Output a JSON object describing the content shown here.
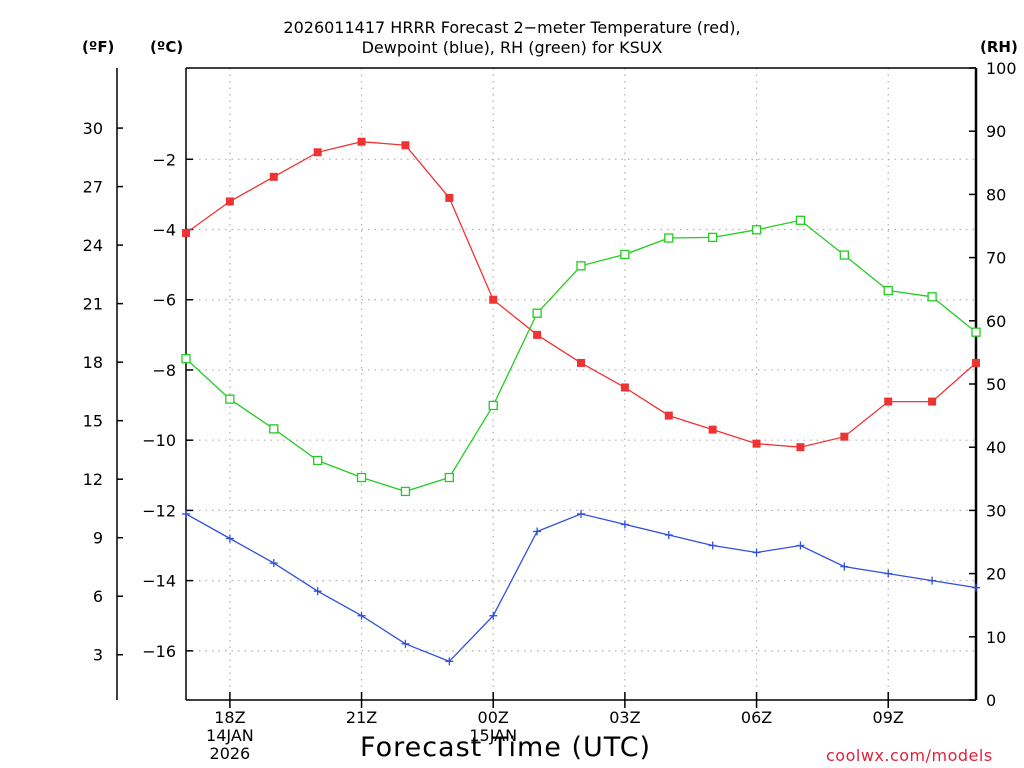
{
  "title_line1": "2026011417 HRRR Forecast 2−meter Temperature (red),",
  "title_line2": "Dewpoint (blue), RH (green) for KSUX",
  "unit_f": "(ºF)",
  "unit_c": "(ºC)",
  "unit_rh": "(RH)",
  "xtitle": "Forecast Time (UTC)",
  "credit": "coolwx.com/models",
  "colors": {
    "temp": "#ee3333",
    "dew": "#2f4fe0",
    "rh": "#22cc22",
    "grid": "#b0b0b0"
  },
  "chart_data": {
    "type": "line",
    "title": "2026011417 HRRR Forecast 2-meter Temperature (red), Dewpoint (blue), RH (green) for KSUX",
    "xlabel": "Forecast Time (UTC)",
    "ylabel_left_outer": "(ºF)",
    "ylabel_left_inner": "(ºC)",
    "ylabel_right": "(RH)",
    "x_hours": [
      17,
      18,
      19,
      20,
      21,
      22,
      23,
      24,
      25,
      26,
      27,
      28,
      29,
      30,
      31,
      32,
      33,
      34,
      35
    ],
    "xlim": [
      17,
      35
    ],
    "x_ticks": [
      {
        "hour": 18,
        "lines": [
          "18Z",
          "14JAN",
          "2026"
        ]
      },
      {
        "hour": 21,
        "lines": [
          "21Z"
        ]
      },
      {
        "hour": 24,
        "lines": [
          "00Z",
          "15JAN"
        ]
      },
      {
        "hour": 27,
        "lines": [
          "03Z"
        ]
      },
      {
        "hour": 30,
        "lines": [
          "06Z"
        ]
      },
      {
        "hour": 33,
        "lines": [
          "09Z"
        ]
      }
    ],
    "celsius_lim": [
      -17.4,
      0.6
    ],
    "celsius_ticks": [
      -2,
      -4,
      -6,
      -8,
      -10,
      -12,
      -14,
      -16
    ],
    "fahrenheit_ticks": [
      30,
      27,
      24,
      21,
      18,
      15,
      12,
      9,
      6,
      3
    ],
    "rh_lim": [
      0,
      100
    ],
    "rh_ticks": [
      0,
      10,
      20,
      30,
      40,
      50,
      60,
      70,
      80,
      90,
      100
    ],
    "series": [
      {
        "name": "Temperature",
        "axis": "celsius",
        "marker": "filled-square",
        "color": "#ee3333",
        "values": [
          -4.1,
          -3.2,
          -2.5,
          -1.8,
          -1.5,
          -1.6,
          -3.1,
          -6.0,
          -7.0,
          -7.8,
          -8.5,
          -9.3,
          -9.7,
          -10.1,
          -10.2,
          -9.9,
          -8.9,
          -8.9,
          -7.8
        ]
      },
      {
        "name": "Dewpoint",
        "axis": "celsius",
        "marker": "plus",
        "color": "#2f4fe0",
        "values": [
          -12.1,
          -12.8,
          -13.5,
          -14.3,
          -15.0,
          -15.8,
          -16.3,
          -15.0,
          -12.6,
          -12.1,
          -12.4,
          -12.7,
          -13.0,
          -13.2,
          -13.0,
          -13.6,
          -13.8,
          -14.0,
          -14.2
        ]
      },
      {
        "name": "RH",
        "axis": "rh",
        "marker": "open-square",
        "color": "#22cc22",
        "values": [
          54,
          47.6,
          42.9,
          37.9,
          35.2,
          33,
          35.2,
          46.6,
          61.2,
          68.7,
          70.5,
          73.1,
          73.2,
          74.4,
          75.9,
          70.4,
          64.8,
          63.8,
          58.2
        ]
      }
    ]
  }
}
